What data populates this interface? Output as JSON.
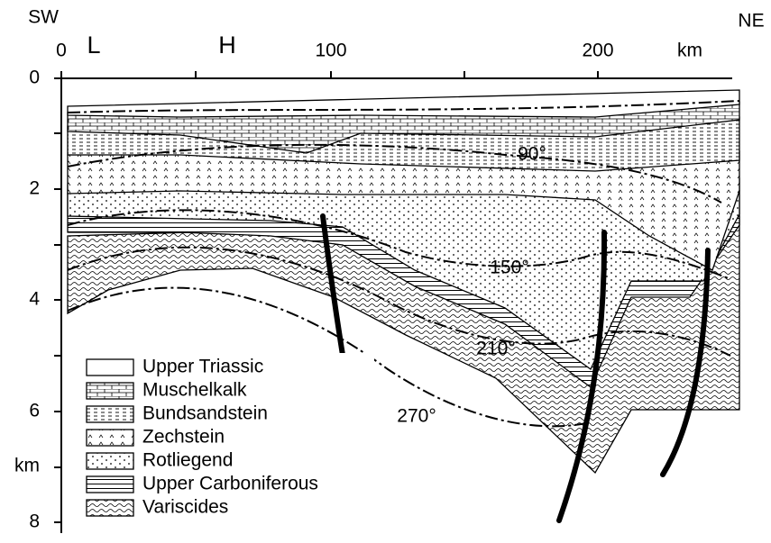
{
  "corners": {
    "left": "SW",
    "right": "NE"
  },
  "top_axis": {
    "ticks": [
      "0",
      "100",
      "200"
    ],
    "unit": "km",
    "markers": [
      "L",
      "H"
    ]
  },
  "left_axis": {
    "ticks": [
      "0",
      "2",
      "4",
      "6",
      "8"
    ],
    "unit": "km"
  },
  "isotherms": [
    "90°",
    "150°",
    "210°",
    "270°"
  ],
  "legend": [
    "Upper Triassic",
    "Muschelkalk",
    "Bundsandstein",
    "Zechstein",
    "Rotliegend",
    "Upper Carboniferous",
    "Variscides"
  ]
}
